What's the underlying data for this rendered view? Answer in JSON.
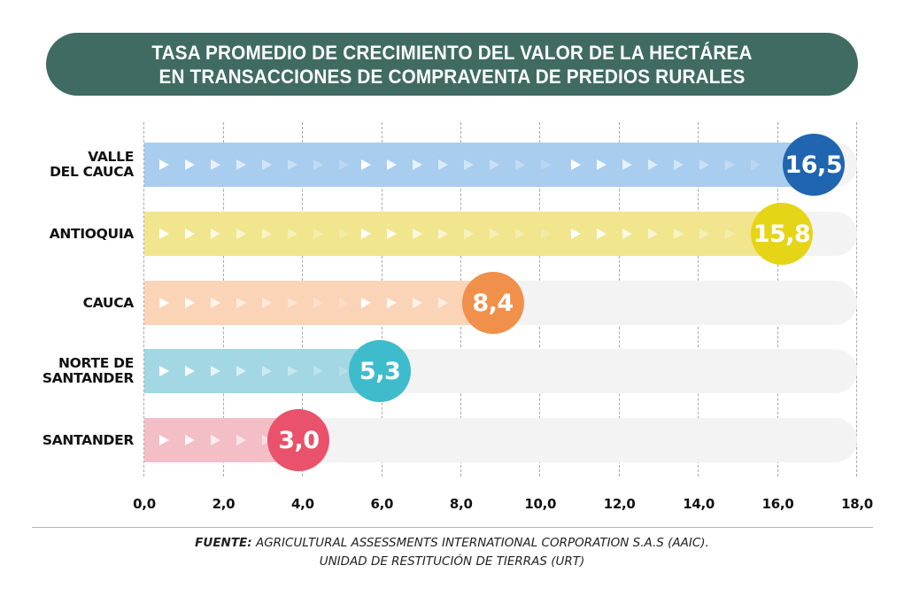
{
  "title": {
    "line1": "TASA PROMEDIO DE CRECIMIENTO DEL VALOR DE LA HECTÁREA",
    "line2": "EN TRANSACCIONES DE COMPRAVENTA DE PREDIOS RURALES"
  },
  "rows": [
    {
      "label_lines": [
        "VALLE",
        "DEL CAUCA"
      ],
      "value_label": "16,5",
      "bar_color": "#a9cdee",
      "badge_color": "#1f65b0"
    },
    {
      "label_lines": [
        "ANTIOQUIA"
      ],
      "value_label": "15,8",
      "bar_color": "#f1e68d",
      "badge_color": "#e6d417"
    },
    {
      "label_lines": [
        "CAUCA"
      ],
      "value_label": "8,4",
      "bar_color": "#fbd4b8",
      "badge_color": "#f0904a"
    },
    {
      "label_lines": [
        "NORTE DE",
        "SANTANDER"
      ],
      "value_label": "5,3",
      "bar_color": "#a2d7e3",
      "badge_color": "#3fbccc"
    },
    {
      "label_lines": [
        "SANTANDER"
      ],
      "value_label": "3,0",
      "bar_color": "#f4bec6",
      "badge_color": "#e9526a"
    }
  ],
  "x_ticks": [
    "0,0",
    "2,0",
    "4,0",
    "6,0",
    "8,0",
    "10,0",
    "12,0",
    "14,0",
    "16,0",
    "18,0"
  ],
  "footer": {
    "source_prefix": "FUENTE:",
    "source_line1": " AGRICULTURAL ASSESSMENTS INTERNATIONAL CORPORATION S.A.S (AAIC).",
    "source_line2": "UNIDAD DE RESTITUCIÓN DE TIERRAS (URT)"
  },
  "colors": {
    "title_bg": "#3f6b62",
    "track": "#f3f3f3",
    "grid": "#a9a9a9"
  },
  "chart_data": {
    "type": "bar",
    "orientation": "horizontal",
    "title": "TASA PROMEDIO DE CRECIMIENTO DEL VALOR DE LA HECTÁREA EN TRANSACCIONES DE COMPRAVENTA DE PREDIOS RURALES",
    "categories": [
      "VALLE DEL CAUCA",
      "ANTIOQUIA",
      "CAUCA",
      "NORTE DE SANTANDER",
      "SANTANDER"
    ],
    "values": [
      16.5,
      15.8,
      8.4,
      5.3,
      3.0
    ],
    "value_labels": [
      "16,5",
      "15,8",
      "8,4",
      "5,3",
      "3,0"
    ],
    "xlabel": "",
    "ylabel": "",
    "xlim": [
      0,
      18
    ],
    "x_ticks": [
      0,
      2,
      4,
      6,
      8,
      10,
      12,
      14,
      16,
      18
    ],
    "grid": "vertical dashed",
    "legend": "none",
    "source": "FUENTE: AGRICULTURAL ASSESSMENTS INTERNATIONAL CORPORATION S.A.S (AAIC). UNIDAD DE RESTITUCIÓN DE TIERRAS (URT)"
  }
}
